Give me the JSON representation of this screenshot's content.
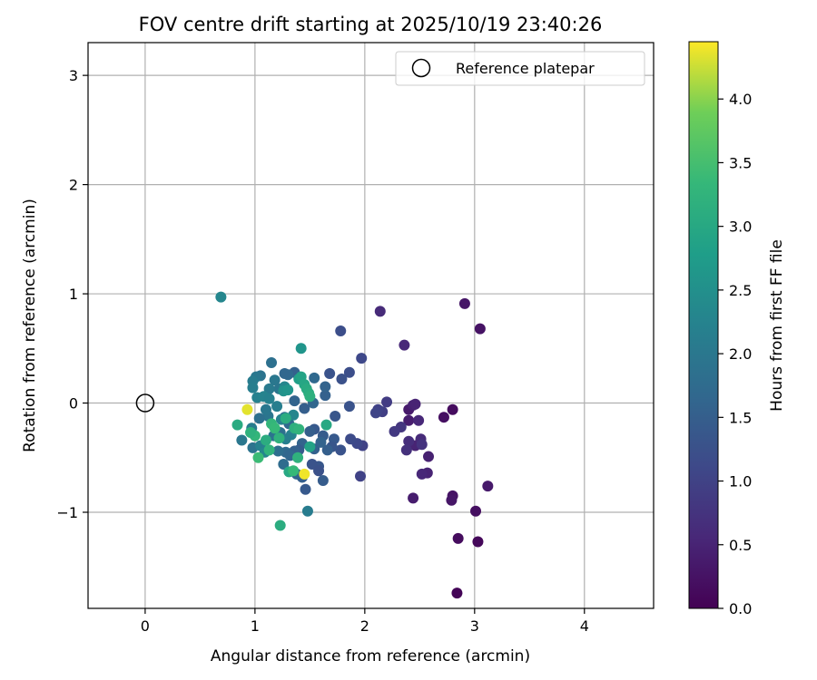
{
  "chart_data": {
    "type": "scatter",
    "title": "FOV centre drift starting at 2025/10/19 23:40:26",
    "xlabel": "Angular distance from reference (arcmin)",
    "ylabel": "Rotation from reference (arcmin)",
    "xlim": [
      -0.52,
      4.63
    ],
    "ylim": [
      -1.88,
      3.3
    ],
    "xticks": [
      0,
      1,
      2,
      3,
      4
    ],
    "yticks": [
      -1,
      0,
      1,
      2,
      3
    ],
    "xtick_labels": [
      "0",
      "1",
      "2",
      "3",
      "4"
    ],
    "ytick_labels": [
      "−1",
      "0",
      "1",
      "2",
      "3"
    ],
    "grid": true,
    "legend": {
      "position": "top-right",
      "entries": [
        "Reference platepar"
      ]
    },
    "reference_point": {
      "x": 0,
      "y": 0,
      "label": "Reference platepar"
    },
    "colorbar": {
      "label": "Hours from first FF file",
      "min": 0.0,
      "max": 4.45,
      "ticks": [
        0.0,
        0.5,
        1.0,
        1.5,
        2.0,
        2.5,
        3.0,
        3.5,
        4.0
      ],
      "tick_labels": [
        "0.0",
        "0.5",
        "1.0",
        "1.5",
        "2.0",
        "2.5",
        "3.0",
        "3.5",
        "4.0"
      ]
    },
    "points": [
      {
        "x": 2.84,
        "y": -1.74,
        "hours": 0.05
      },
      {
        "x": 3.03,
        "y": -1.27,
        "hours": 0.1
      },
      {
        "x": 2.85,
        "y": -1.24,
        "hours": 0.15
      },
      {
        "x": 3.01,
        "y": -0.99,
        "hours": 0.2
      },
      {
        "x": 2.8,
        "y": -0.85,
        "hours": 0.25
      },
      {
        "x": 2.79,
        "y": -0.89,
        "hours": 0.3
      },
      {
        "x": 3.12,
        "y": -0.76,
        "hours": 0.35
      },
      {
        "x": 2.44,
        "y": -0.87,
        "hours": 0.4
      },
      {
        "x": 2.58,
        "y": -0.49,
        "hours": 0.45
      },
      {
        "x": 2.57,
        "y": -0.64,
        "hours": 0.5
      },
      {
        "x": 2.52,
        "y": -0.65,
        "hours": 0.55
      },
      {
        "x": 2.91,
        "y": 0.91,
        "hours": 0.3
      },
      {
        "x": 3.05,
        "y": 0.68,
        "hours": 0.25
      },
      {
        "x": 2.14,
        "y": 0.84,
        "hours": 0.6
      },
      {
        "x": 2.36,
        "y": 0.53,
        "hours": 0.55
      },
      {
        "x": 2.8,
        "y": -0.06,
        "hours": 0.15
      },
      {
        "x": 2.72,
        "y": -0.13,
        "hours": 0.2
      },
      {
        "x": 2.4,
        "y": -0.06,
        "hours": 0.35
      },
      {
        "x": 2.44,
        "y": -0.02,
        "hours": 0.45
      },
      {
        "x": 2.46,
        "y": -0.01,
        "hours": 0.5
      },
      {
        "x": 2.4,
        "y": -0.16,
        "hours": 0.4
      },
      {
        "x": 2.49,
        "y": -0.16,
        "hours": 0.55
      },
      {
        "x": 2.46,
        "y": -0.39,
        "hours": 0.5
      },
      {
        "x": 2.51,
        "y": -0.33,
        "hours": 0.6
      },
      {
        "x": 2.4,
        "y": -0.35,
        "hours": 0.65
      },
      {
        "x": 2.38,
        "y": -0.43,
        "hours": 0.7
      },
      {
        "x": 2.52,
        "y": -0.38,
        "hours": 0.75
      },
      {
        "x": 2.33,
        "y": -0.22,
        "hours": 0.8
      },
      {
        "x": 2.27,
        "y": -0.26,
        "hours": 0.85
      },
      {
        "x": 2.2,
        "y": 0.01,
        "hours": 0.9
      },
      {
        "x": 2.16,
        "y": -0.08,
        "hours": 0.95
      },
      {
        "x": 2.12,
        "y": -0.06,
        "hours": 1.0
      },
      {
        "x": 2.1,
        "y": -0.09,
        "hours": 1.05
      },
      {
        "x": 1.98,
        "y": -0.39,
        "hours": 1.0
      },
      {
        "x": 1.93,
        "y": -0.37,
        "hours": 1.1
      },
      {
        "x": 1.87,
        "y": -0.33,
        "hours": 1.15
      },
      {
        "x": 1.96,
        "y": -0.67,
        "hours": 1.0
      },
      {
        "x": 1.97,
        "y": 0.41,
        "hours": 1.1
      },
      {
        "x": 1.78,
        "y": 0.66,
        "hours": 1.2
      },
      {
        "x": 1.86,
        "y": 0.28,
        "hours": 1.2
      },
      {
        "x": 1.79,
        "y": 0.22,
        "hours": 1.25
      },
      {
        "x": 1.86,
        "y": -0.03,
        "hours": 1.3
      },
      {
        "x": 1.68,
        "y": 0.27,
        "hours": 1.3
      },
      {
        "x": 1.73,
        "y": -0.12,
        "hours": 1.35
      },
      {
        "x": 1.72,
        "y": -0.33,
        "hours": 1.4
      },
      {
        "x": 1.78,
        "y": -0.43,
        "hours": 1.3
      },
      {
        "x": 1.7,
        "y": -0.4,
        "hours": 1.35
      },
      {
        "x": 1.62,
        "y": -0.71,
        "hours": 1.45
      },
      {
        "x": 1.46,
        "y": -0.79,
        "hours": 1.4
      },
      {
        "x": 1.48,
        "y": -0.99,
        "hours": 2.1
      },
      {
        "x": 1.58,
        "y": -0.58,
        "hours": 1.35
      },
      {
        "x": 1.52,
        "y": -0.56,
        "hours": 1.3
      },
      {
        "x": 1.58,
        "y": -0.62,
        "hours": 1.25
      },
      {
        "x": 1.54,
        "y": -0.24,
        "hours": 1.4
      },
      {
        "x": 1.5,
        "y": -0.26,
        "hours": 1.5
      },
      {
        "x": 1.62,
        "y": -0.3,
        "hours": 1.45
      },
      {
        "x": 1.66,
        "y": -0.43,
        "hours": 1.5
      },
      {
        "x": 1.54,
        "y": -0.42,
        "hours": 1.55
      },
      {
        "x": 1.6,
        "y": -0.36,
        "hours": 1.6
      },
      {
        "x": 1.64,
        "y": 0.07,
        "hours": 1.55
      },
      {
        "x": 1.64,
        "y": 0.15,
        "hours": 1.6
      },
      {
        "x": 1.53,
        "y": 0.0,
        "hours": 1.65
      },
      {
        "x": 1.54,
        "y": 0.23,
        "hours": 1.7
      },
      {
        "x": 1.45,
        "y": -0.05,
        "hours": 1.5
      },
      {
        "x": 1.36,
        "y": 0.02,
        "hours": 1.6
      },
      {
        "x": 1.36,
        "y": 0.28,
        "hours": 1.55
      },
      {
        "x": 1.3,
        "y": 0.26,
        "hours": 1.7
      },
      {
        "x": 1.27,
        "y": 0.27,
        "hours": 1.65
      },
      {
        "x": 1.43,
        "y": -0.37,
        "hours": 1.6
      },
      {
        "x": 1.4,
        "y": -0.43,
        "hours": 1.45
      },
      {
        "x": 1.36,
        "y": -0.44,
        "hours": 1.55
      },
      {
        "x": 1.43,
        "y": -0.68,
        "hours": 1.5
      },
      {
        "x": 1.38,
        "y": -0.65,
        "hours": 1.6
      },
      {
        "x": 1.28,
        "y": -0.45,
        "hours": 1.7
      },
      {
        "x": 1.32,
        "y": -0.48,
        "hours": 1.65
      },
      {
        "x": 1.21,
        "y": -0.44,
        "hours": 1.8
      },
      {
        "x": 1.26,
        "y": -0.56,
        "hours": 1.75
      },
      {
        "x": 1.31,
        "y": -0.19,
        "hours": 1.7
      },
      {
        "x": 1.27,
        "y": -0.13,
        "hours": 1.8
      },
      {
        "x": 1.23,
        "y": -0.27,
        "hours": 1.85
      },
      {
        "x": 1.17,
        "y": -0.3,
        "hours": 1.9
      },
      {
        "x": 1.12,
        "y": -0.12,
        "hours": 1.95
      },
      {
        "x": 1.1,
        "y": -0.06,
        "hours": 2.0
      },
      {
        "x": 1.04,
        "y": -0.14,
        "hours": 1.85
      },
      {
        "x": 1.15,
        "y": 0.37,
        "hours": 1.85
      },
      {
        "x": 1.18,
        "y": 0.21,
        "hours": 2.0
      },
      {
        "x": 1.22,
        "y": 0.13,
        "hours": 1.95
      },
      {
        "x": 1.13,
        "y": 0.13,
        "hours": 2.05
      },
      {
        "x": 1.05,
        "y": 0.25,
        "hours": 1.9
      },
      {
        "x": 1.01,
        "y": 0.24,
        "hours": 2.0
      },
      {
        "x": 0.98,
        "y": 0.2,
        "hours": 2.1
      },
      {
        "x": 0.98,
        "y": 0.14,
        "hours": 2.15
      },
      {
        "x": 1.02,
        "y": 0.05,
        "hours": 2.2
      },
      {
        "x": 1.08,
        "y": 0.06,
        "hours": 2.25
      },
      {
        "x": 1.13,
        "y": 0.04,
        "hours": 2.2
      },
      {
        "x": 1.2,
        "y": -0.03,
        "hours": 2.15
      },
      {
        "x": 1.27,
        "y": 0.15,
        "hours": 2.3
      },
      {
        "x": 1.24,
        "y": -0.15,
        "hours": 2.25
      },
      {
        "x": 1.35,
        "y": -0.11,
        "hours": 2.3
      },
      {
        "x": 1.33,
        "y": -0.29,
        "hours": 2.2
      },
      {
        "x": 1.28,
        "y": -0.33,
        "hours": 2.15
      },
      {
        "x": 0.98,
        "y": -0.41,
        "hours": 1.9
      },
      {
        "x": 0.88,
        "y": -0.34,
        "hours": 2.0
      },
      {
        "x": 0.97,
        "y": -0.23,
        "hours": 2.1
      },
      {
        "x": 1.05,
        "y": -0.39,
        "hours": 2.2
      },
      {
        "x": 1.09,
        "y": -0.45,
        "hours": 2.3
      },
      {
        "x": 0.69,
        "y": 0.97,
        "hours": 2.3
      },
      {
        "x": 1.42,
        "y": 0.5,
        "hours": 2.6
      },
      {
        "x": 1.26,
        "y": 0.11,
        "hours": 2.55
      },
      {
        "x": 1.3,
        "y": 0.12,
        "hours": 2.6
      },
      {
        "x": 1.4,
        "y": 0.22,
        "hours": 2.8
      },
      {
        "x": 1.42,
        "y": 0.24,
        "hours": 2.9
      },
      {
        "x": 1.45,
        "y": 0.17,
        "hours": 2.95
      },
      {
        "x": 1.47,
        "y": 0.13,
        "hours": 3.05
      },
      {
        "x": 1.49,
        "y": 0.09,
        "hours": 3.1
      },
      {
        "x": 1.5,
        "y": 0.06,
        "hours": 3.15
      },
      {
        "x": 1.28,
        "y": -0.14,
        "hours": 3.1
      },
      {
        "x": 1.36,
        "y": -0.23,
        "hours": 3.15
      },
      {
        "x": 1.4,
        "y": -0.24,
        "hours": 3.25
      },
      {
        "x": 1.15,
        "y": -0.19,
        "hours": 3.3
      },
      {
        "x": 1.18,
        "y": -0.23,
        "hours": 3.35
      },
      {
        "x": 1.22,
        "y": -0.32,
        "hours": 3.2
      },
      {
        "x": 1.1,
        "y": -0.34,
        "hours": 3.1
      },
      {
        "x": 1.13,
        "y": -0.43,
        "hours": 3.25
      },
      {
        "x": 1.0,
        "y": -0.3,
        "hours": 3.3
      },
      {
        "x": 0.96,
        "y": -0.27,
        "hours": 3.2
      },
      {
        "x": 0.84,
        "y": -0.2,
        "hours": 3.05
      },
      {
        "x": 1.03,
        "y": -0.5,
        "hours": 3.4
      },
      {
        "x": 1.31,
        "y": -0.63,
        "hours": 3.0
      },
      {
        "x": 1.39,
        "y": -0.5,
        "hours": 3.2
      },
      {
        "x": 1.5,
        "y": -0.4,
        "hours": 2.9
      },
      {
        "x": 1.65,
        "y": -0.2,
        "hours": 3.0
      },
      {
        "x": 1.35,
        "y": -0.62,
        "hours": 3.35
      },
      {
        "x": 1.23,
        "y": -1.12,
        "hours": 3.1
      },
      {
        "x": 1.45,
        "y": -0.65,
        "hours": 4.4
      },
      {
        "x": 0.93,
        "y": -0.06,
        "hours": 4.35
      }
    ]
  }
}
